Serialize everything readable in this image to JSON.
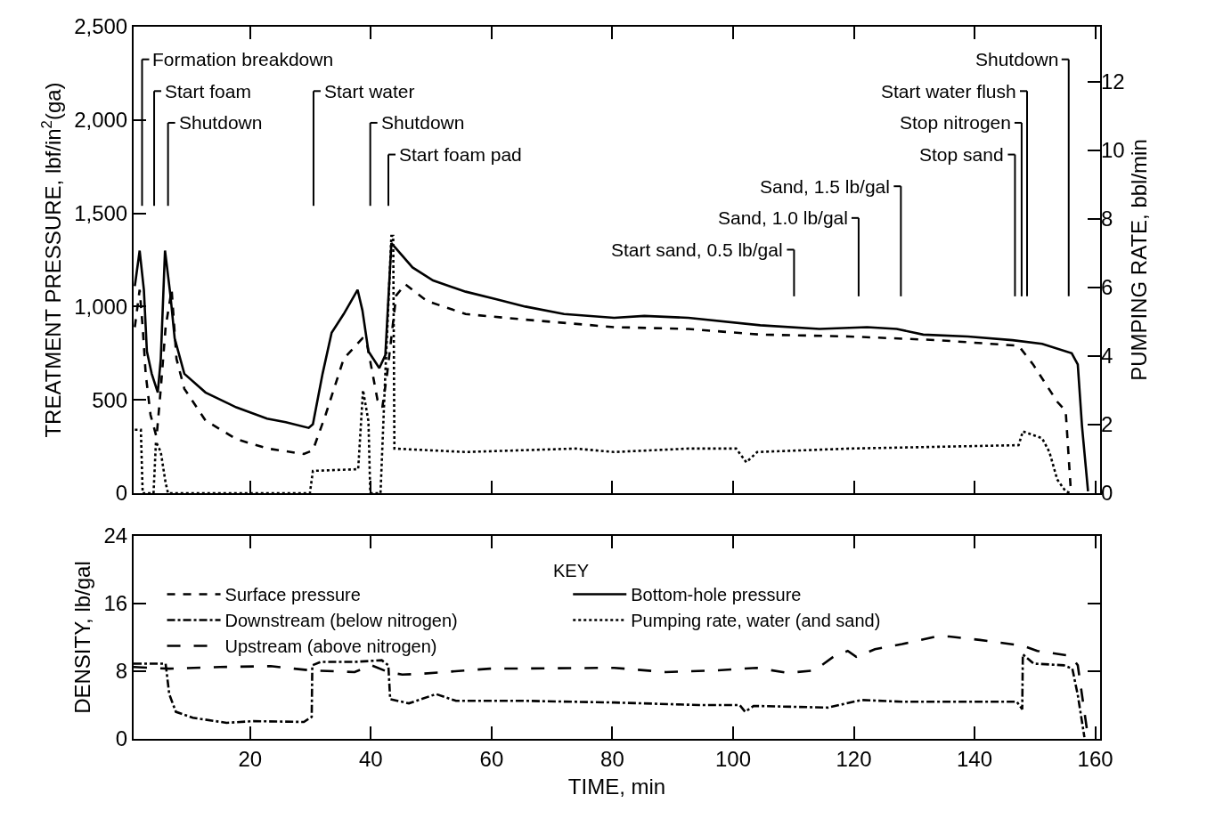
{
  "chart_data": [
    {
      "type": "line",
      "ylabel": "TREATMENT PRESSURE, lbf/in$^{2}$(ga)",
      "y2label": "PUMPING RATE, bbl/min",
      "xlim": [
        0.7,
        160.8
      ],
      "xticks": [
        {
          "value": 20,
          "label": null
        },
        {
          "value": 40,
          "label": null
        },
        {
          "value": 60,
          "label": null
        },
        {
          "value": 80,
          "label": null
        },
        {
          "value": 100,
          "label": null
        },
        {
          "value": 120,
          "label": null
        },
        {
          "value": 140,
          "label": null
        },
        {
          "value": 160,
          "label": null
        }
      ],
      "ylim": [
        0,
        2500
      ],
      "yticks": [
        0,
        500,
        {
          "value": 1000,
          "label": "1,000"
        },
        {
          "value": 1500,
          "label": "1,500"
        },
        {
          "value": 2000,
          "label": "2,000"
        },
        {
          "value": 2500,
          "label": "2,500"
        }
      ],
      "y2lim": [
        0,
        13.6
      ],
      "y2ticks": [
        0,
        2,
        4,
        6,
        8,
        10,
        12
      ],
      "tick_labels": "y",
      "legend": "bottom",
      "series": [
        {
          "name": "Surface pressure",
          "color": "#000000",
          "line_style": "dashed",
          "x": [
            0.9,
            1.7,
            2.2,
            2.7,
            3.5,
            4.5,
            5.2,
            6.0,
            7.0,
            7.8,
            9.1,
            12.6,
            17.7,
            22.8,
            28.9,
            30.4,
            32.5,
            35.5,
            38.6,
            39.3,
            41.1,
            41.9,
            42.7,
            44.2,
            45.7,
            49.3,
            55.7,
            65.6,
            80.3,
            92.6,
            104.5,
            119.2,
            134,
            147.3,
            149.7,
            153.7,
            155.1,
            155.9,
            156.1
          ],
          "values": [
            890,
            1090,
            890,
            640,
            420,
            300,
            560,
            890,
            1090,
            720,
            560,
            390,
            290,
            240,
            210,
            230,
            420,
            720,
            830,
            810,
            500,
            460,
            640,
            1060,
            1120,
            1030,
            960,
            930,
            890,
            880,
            850,
            840,
            820,
            790,
            690,
            490,
            440,
            40,
            5
          ]
        },
        {
          "name": "Bottom-hole pressure",
          "color": "#000000",
          "line_style": "solid",
          "x": [
            0.9,
            1.7,
            2.4,
            2.9,
            3.7,
            4.7,
            5.2,
            5.9,
            6.8,
            7.5,
            9.1,
            12.6,
            17.7,
            22.8,
            25.9,
            29.7,
            30.4,
            32.0,
            33.5,
            35.5,
            37.8,
            38.6,
            39.6,
            41.4,
            42.4,
            43.4,
            46.9,
            50.3,
            55.7,
            60.7,
            65.6,
            72.0,
            80.3,
            85.3,
            92.6,
            104.5,
            114.3,
            122.2,
            127.1,
            131.5,
            138.9,
            146.3,
            151.2,
            156.1,
            157.1,
            157.8,
            158.8
          ],
          "values": [
            1110,
            1300,
            1090,
            760,
            640,
            540,
            720,
            1300,
            1060,
            830,
            640,
            540,
            460,
            400,
            380,
            350,
            370,
            640,
            860,
            960,
            1090,
            980,
            760,
            670,
            740,
            1340,
            1210,
            1140,
            1080,
            1040,
            1000,
            960,
            940,
            950,
            940,
            900,
            880,
            890,
            880,
            850,
            840,
            820,
            800,
            750,
            690,
            360,
            10
          ]
        },
        {
          "name": "Pumping rate, water (and sand)",
          "color": "#000000",
          "line_style": "dotted",
          "axis": "y2",
          "x": [
            0.9,
            1.9,
            2.2,
            4.0,
            4.4,
            5.2,
            6.0,
            6.4,
            29.9,
            30.4,
            37.9,
            38.7,
            39.6,
            39.9,
            41.6,
            42.4,
            43.4,
            43.7,
            43.9,
            55.7,
            73.9,
            80.3,
            92.6,
            100.5,
            102.2,
            104.0,
            119.2,
            147.3,
            148.0,
            151.2,
            152.4,
            153.7,
            155.1,
            155.9
          ],
          "values": [
            1.85,
            1.85,
            0,
            0,
            1.5,
            1.2,
            0.3,
            0,
            0,
            0.65,
            0.7,
            3.0,
            2.1,
            0,
            0,
            3.5,
            7.5,
            7.5,
            1.3,
            1.2,
            1.3,
            1.2,
            1.3,
            1.3,
            0.9,
            1.2,
            1.3,
            1.4,
            1.8,
            1.6,
            1.2,
            0.4,
            0.05,
            0
          ]
        }
      ],
      "ref_lines": [
        {
          "axis": "x",
          "value": 2.1,
          "label": "Formation breakdown"
        },
        {
          "axis": "x",
          "value": 4.1,
          "label": "Start foam"
        },
        {
          "axis": "x",
          "value": 6.4,
          "label": "Shutdown"
        },
        {
          "axis": "x",
          "value": 30.5,
          "label": "Start water"
        },
        {
          "axis": "x",
          "value": 39.9,
          "label": "Shutdown"
        },
        {
          "axis": "x",
          "value": 42.9,
          "label": "Start foam pad"
        },
        {
          "axis": "x",
          "value": 110.1,
          "label": "Start sand, 0.5 lb/gal"
        },
        {
          "axis": "x",
          "value": 120.8,
          "label": "Sand, 1.0 lb/gal"
        },
        {
          "axis": "x",
          "value": 127.8,
          "label": "Sand, 1.5 lb/gal"
        },
        {
          "axis": "x",
          "value": 146.7,
          "label": "Stop sand"
        },
        {
          "axis": "x",
          "value": 147.8,
          "label": "Stop nitrogen"
        },
        {
          "axis": "x",
          "value": 148.7,
          "label": "Start water flush"
        },
        {
          "axis": "x",
          "value": 155.6,
          "label": "Shutdown"
        }
      ]
    },
    {
      "type": "line",
      "ylabel": "DENSITY, lb/gal",
      "xlabel": "TIME, min",
      "xlim": [
        0.7,
        160.8
      ],
      "xticks": [
        20,
        40,
        60,
        80,
        100,
        120,
        140,
        160
      ],
      "ylim": [
        0,
        24
      ],
      "yticks": [
        0,
        8,
        16,
        24
      ],
      "legend": "top left",
      "legend_title": "KEY",
      "series": [
        {
          "name": "Downstream (below nitrogen)",
          "color": "#000000",
          "line_style": "dashdot",
          "x": [
            0.7,
            6.0,
            6.6,
            7.7,
            10.5,
            16.1,
            20.6,
            28.9,
            30.2,
            30.3,
            31.7,
            37.3,
            41.8,
            42.9,
            43.2,
            46.3,
            50.8,
            54.1,
            65.3,
            80.3,
            94.4,
            101.1,
            102.0,
            103.4,
            115.7,
            121.3,
            128.0,
            144.8,
            147.0,
            147.9,
            148.0,
            149.8,
            154.8,
            156.2,
            157.1,
            158.2
          ],
          "values": [
            8.9,
            8.9,
            5.3,
            3.2,
            2.5,
            1.9,
            2.1,
            2.0,
            2.6,
            8.7,
            9.1,
            9.1,
            9.3,
            8.7,
            4.7,
            4.2,
            5.3,
            4.5,
            4.5,
            4.3,
            4.0,
            4.0,
            3.2,
            3.9,
            3.7,
            4.6,
            4.4,
            4.4,
            4.4,
            3.5,
            10.0,
            8.9,
            8.7,
            8.3,
            5.2,
            0.2
          ]
        },
        {
          "name": "Upstream (above nitrogen)",
          "color": "#000000",
          "line_style": "longdash",
          "x": [
            0.7,
            6.6,
            15.0,
            23.4,
            27.3,
            30.1,
            37.3,
            40.1,
            42.9,
            45.2,
            48.5,
            59.7,
            80.3,
            88.8,
            97.2,
            103.9,
            109.0,
            113.5,
            116.8,
            119.0,
            120.4,
            123.5,
            128.0,
            133.6,
            135.8,
            140.9,
            148.1,
            150.4,
            156.0,
            157.1,
            158.8
          ],
          "values": [
            8.5,
            8.3,
            8.5,
            8.6,
            8.3,
            8.1,
            7.9,
            8.7,
            7.9,
            7.6,
            7.7,
            8.3,
            8.4,
            7.9,
            8.1,
            8.4,
            7.8,
            8.1,
            9.8,
            10.4,
            9.7,
            10.6,
            11.2,
            12.1,
            12.1,
            11.7,
            11.0,
            10.4,
            9.8,
            8.7,
            0.2
          ]
        }
      ]
    }
  ]
}
